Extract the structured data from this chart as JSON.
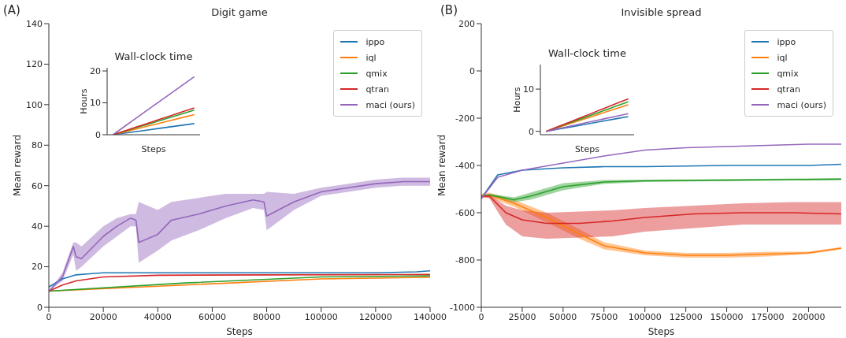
{
  "chart_data": [
    {
      "type": "line",
      "title": "Digit game",
      "xlabel": "Steps",
      "ylabel": "Mean reward",
      "annotations": [
        "(A)"
      ],
      "xlim": [
        0,
        140000
      ],
      "xticks": [
        0,
        20000,
        40000,
        60000,
        80000,
        100000,
        120000,
        140000
      ],
      "ylim": [
        0,
        140
      ],
      "yticks": [
        0,
        20,
        40,
        60,
        80,
        100,
        120,
        140
      ],
      "grid": false,
      "legend": "top right",
      "series": [
        {
          "name": "ippo",
          "color": "#1f77b4",
          "x": [
            0,
            5000,
            10000,
            15000,
            20000,
            30000,
            40000,
            60000,
            80000,
            100000,
            120000,
            135000,
            140000
          ],
          "values": [
            10,
            14,
            16,
            16.5,
            17,
            17,
            17,
            17,
            17,
            17,
            17,
            17.5,
            18
          ]
        },
        {
          "name": "iql",
          "color": "#ff7f0e",
          "x": [
            0,
            50000,
            100000,
            140000
          ],
          "values": [
            8,
            11,
            14,
            14.8
          ]
        },
        {
          "name": "qmix",
          "color": "#2ca02c",
          "x": [
            0,
            50000,
            100000,
            140000
          ],
          "values": [
            8,
            12,
            15,
            15.5
          ]
        },
        {
          "name": "qtran",
          "color": "#d62728",
          "x": [
            0,
            5000,
            10000,
            20000,
            40000,
            80000,
            140000
          ],
          "values": [
            8,
            11,
            13,
            15,
            15.8,
            16,
            16.2
          ]
        },
        {
          "name": "maci (ours)",
          "color": "#9467bd",
          "x": [
            0,
            5000,
            9000,
            10000,
            12000,
            20000,
            25000,
            30000,
            32000,
            33000,
            40000,
            45000,
            55000,
            65000,
            75000,
            79000,
            80000,
            90000,
            100000,
            110000,
            120000,
            130000,
            140000
          ],
          "values": [
            8,
            15,
            30,
            25,
            24,
            35,
            40,
            44,
            43,
            32,
            36,
            43,
            46,
            50,
            53,
            52,
            45,
            52,
            57,
            59,
            61,
            62,
            62
          ],
          "lower": [
            8,
            13,
            26,
            18,
            20,
            30,
            35,
            40,
            40,
            22,
            28,
            33,
            38,
            44,
            49,
            48,
            38,
            48,
            55,
            57,
            59,
            60,
            60
          ],
          "upper": [
            8,
            17,
            32,
            32,
            30,
            40,
            44,
            46,
            46,
            52,
            48,
            52,
            54,
            56,
            56,
            56,
            57,
            56,
            59,
            61,
            63,
            64,
            64
          ]
        }
      ]
    },
    {
      "type": "line",
      "title": "Wall-clock time",
      "xlabel": "Steps",
      "ylabel": "Hours",
      "categories": [
        null,
        null,
        null,
        null,
        null,
        null,
        null,
        null
      ],
      "ylim": [
        0,
        21
      ],
      "yticks": [
        0,
        10,
        20
      ],
      "tick_labels": "y",
      "grid": false,
      "series": [
        {
          "color": "#1f77b4",
          "values": [
            0,
            0.5,
            1,
            1.5,
            2,
            2.5,
            3,
            3.5
          ]
        },
        {
          "color": "#ff7f0e",
          "values": [
            0,
            0.9,
            1.8,
            2.7,
            3.6,
            4.5,
            5.4,
            6.3
          ]
        },
        {
          "color": "#2ca02c",
          "values": [
            0,
            1.1,
            2.2,
            3.3,
            4.4,
            5.5,
            6.6,
            7.7
          ]
        },
        {
          "color": "#d62728",
          "values": [
            0,
            1.2,
            2.4,
            3.6,
            4.8,
            6,
            7.2,
            8.4
          ]
        },
        {
          "color": "#9467bd",
          "values": [
            0,
            2.6,
            5.2,
            7.8,
            10.4,
            13,
            15.6,
            18.2
          ]
        }
      ]
    },
    {
      "type": "line",
      "title": "Invisible spread",
      "xlabel": "Steps",
      "ylabel": "Mean reward",
      "annotations": [
        "(B)"
      ],
      "xlim": [
        0,
        220000
      ],
      "xticks": [
        0,
        25000,
        50000,
        75000,
        100000,
        125000,
        150000,
        175000,
        200000
      ],
      "ylim": [
        -1000,
        200
      ],
      "yticks": [
        -1000,
        -800,
        -600,
        -400,
        -200,
        0,
        200
      ],
      "grid": false,
      "legend": "top right",
      "series": [
        {
          "name": "ippo",
          "color": "#1f77b4",
          "x": [
            0,
            10000,
            25000,
            50000,
            75000,
            100000,
            150000,
            200000,
            220000
          ],
          "values": [
            -540,
            -440,
            -420,
            -410,
            -405,
            -405,
            -400,
            -400,
            -395
          ]
        },
        {
          "name": "iql",
          "color": "#ff7f0e",
          "x": [
            0,
            5000,
            20000,
            40000,
            60000,
            75000,
            100000,
            125000,
            150000,
            175000,
            200000,
            220000
          ],
          "values": [
            -530,
            -525,
            -560,
            -620,
            -690,
            -740,
            -770,
            -780,
            -780,
            -775,
            -770,
            -750
          ],
          "lower": [
            -540,
            -535,
            -575,
            -640,
            -710,
            -755,
            -780,
            -790,
            -790,
            -785,
            -775,
            -755
          ],
          "upper": [
            -520,
            -515,
            -545,
            -600,
            -670,
            -725,
            -760,
            -770,
            -770,
            -765,
            -765,
            -745
          ]
        },
        {
          "name": "qmix",
          "color": "#2ca02c",
          "x": [
            0,
            5000,
            20000,
            30000,
            50000,
            75000,
            100000,
            150000,
            220000
          ],
          "values": [
            -530,
            -525,
            -545,
            -530,
            -490,
            -470,
            -465,
            -462,
            -458
          ],
          "lower": [
            -535,
            -530,
            -555,
            -545,
            -505,
            -478,
            -470,
            -466,
            -462
          ],
          "upper": [
            -525,
            -520,
            -535,
            -515,
            -475,
            -462,
            -460,
            -458,
            -454
          ]
        },
        {
          "name": "qtran",
          "color": "#d62728",
          "x": [
            0,
            5000,
            15000,
            25000,
            40000,
            60000,
            80000,
            100000,
            130000,
            160000,
            190000,
            220000
          ],
          "values": [
            -530,
            -530,
            -600,
            -630,
            -645,
            -645,
            -635,
            -620,
            -605,
            -600,
            -600,
            -605
          ],
          "lower": [
            -530,
            -540,
            -650,
            -700,
            -710,
            -705,
            -700,
            -680,
            -665,
            -650,
            -650,
            -650
          ],
          "upper": [
            -530,
            -525,
            -570,
            -590,
            -600,
            -595,
            -590,
            -580,
            -570,
            -560,
            -555,
            -555
          ]
        },
        {
          "name": "maci (ours)",
          "color": "#9467bd",
          "x": [
            0,
            10000,
            25000,
            50000,
            75000,
            100000,
            125000,
            150000,
            175000,
            200000,
            220000
          ],
          "values": [
            -540,
            -450,
            -420,
            -390,
            -360,
            -335,
            -325,
            -320,
            -315,
            -310,
            -310
          ]
        }
      ]
    },
    {
      "type": "line",
      "title": "Wall-clock time",
      "xlabel": "Steps",
      "ylabel": "Hours",
      "categories": [
        null,
        null,
        null,
        null,
        null,
        null,
        null,
        null
      ],
      "ylim": [
        -0.8,
        15.8
      ],
      "yticks": [
        0,
        10
      ],
      "tick_labels": "y",
      "grid": false,
      "series": [
        {
          "color": "#1f77b4",
          "values": [
            0,
            0.5,
            1,
            1.5,
            2,
            2.5,
            3,
            3.5
          ]
        },
        {
          "color": "#ff7f0e",
          "values": [
            0,
            0.9,
            1.8,
            2.7,
            3.6,
            4.5,
            5.4,
            6.3
          ]
        },
        {
          "color": "#2ca02c",
          "values": [
            0,
            1,
            2,
            3,
            4,
            5,
            6,
            7
          ]
        },
        {
          "color": "#d62728",
          "values": [
            0,
            1.1,
            2.2,
            3.3,
            4.4,
            5.5,
            6.6,
            7.7
          ]
        },
        {
          "color": "#9467bd",
          "values": [
            0,
            0.6,
            1.2,
            1.8,
            2.4,
            3,
            3.6,
            4.2
          ]
        }
      ]
    }
  ]
}
